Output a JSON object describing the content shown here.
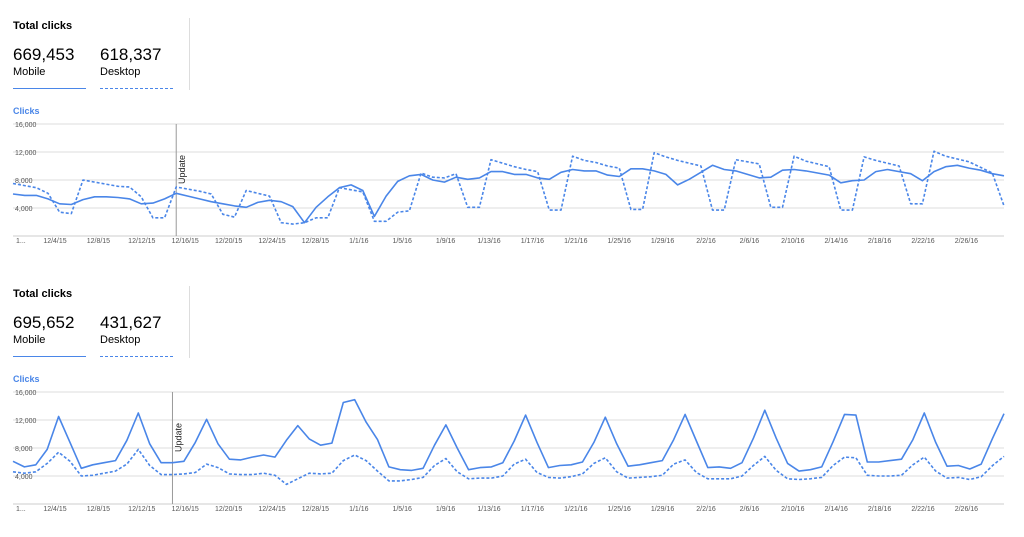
{
  "panels": [
    {
      "title": "Total clicks",
      "mobile_value": "669,453",
      "mobile_label": "Mobile",
      "desktop_value": "618,337",
      "desktop_label": "Desktop",
      "clicks_label": "Clicks",
      "update_label": "Update"
    },
    {
      "title": "Total clicks",
      "mobile_value": "695,652",
      "mobile_label": "Mobile",
      "desktop_value": "431,627",
      "desktop_label": "Desktop",
      "clicks_label": "Clicks",
      "update_label": "Update"
    }
  ],
  "colors": {
    "series": "#4a86e8",
    "grid": "#dddddd",
    "text": "#555555",
    "update_line": "#999999"
  },
  "chart_data": [
    {
      "type": "line",
      "title": "",
      "ylabel": "Clicks",
      "ylim": [
        0,
        16000
      ],
      "yticks": [
        "4,000",
        "8,000",
        "12,000",
        "16,000"
      ],
      "xticks": [
        "1...",
        "12/4/15",
        "12/8/15",
        "12/12/15",
        "12/16/15",
        "12/20/15",
        "12/24/15",
        "12/28/15",
        "1/1/16",
        "1/5/16",
        "1/9/16",
        "1/13/16",
        "1/17/16",
        "1/21/16",
        "1/25/16",
        "1/29/16",
        "2/2/16",
        "2/6/16",
        "2/10/16",
        "2/14/16",
        "2/18/16",
        "2/22/16",
        "2/26/16"
      ],
      "annotation": {
        "label": "Update",
        "x_index": 14
      },
      "series": [
        {
          "name": "Mobile",
          "style": "solid",
          "values": [
            6000,
            5800,
            5800,
            5300,
            4600,
            4500,
            5200,
            5600,
            5600,
            5500,
            5300,
            4600,
            4700,
            5300,
            6100,
            5700,
            5300,
            4900,
            4600,
            4300,
            4100,
            4800,
            5100,
            4900,
            4200,
            1900,
            4100,
            5600,
            6900,
            7300,
            6500,
            2800,
            5700,
            7800,
            8600,
            8800,
            8000,
            7700,
            8400,
            8100,
            8300,
            9200,
            9200,
            8800,
            8800,
            8300,
            8100,
            9100,
            9500,
            9300,
            9300,
            8700,
            8500,
            9600,
            9600,
            9300,
            8800,
            7300,
            8100,
            9100,
            10100,
            9500,
            9300,
            8800,
            8300,
            8400,
            9400,
            9500,
            9300,
            9000,
            8700,
            7600,
            7900,
            8000,
            9200,
            9500,
            9200,
            8900,
            7900,
            9200,
            9900,
            10100,
            9700,
            9400,
            8900,
            8600
          ]
        },
        {
          "name": "Desktop",
          "style": "dashed",
          "values": [
            7500,
            7200,
            6900,
            6100,
            3400,
            3200,
            8000,
            7700,
            7400,
            7100,
            7000,
            5600,
            2600,
            2600,
            7000,
            6700,
            6400,
            6000,
            3100,
            2700,
            6500,
            6100,
            5700,
            1900,
            1700,
            1900,
            2600,
            2600,
            6900,
            6600,
            6300,
            2100,
            2100,
            3400,
            3600,
            9000,
            8400,
            8300,
            8900,
            4100,
            4100,
            10900,
            10400,
            9900,
            9500,
            9200,
            3700,
            3700,
            11400,
            10800,
            10500,
            10000,
            9700,
            3800,
            3800,
            11900,
            11300,
            10800,
            10400,
            10000,
            3700,
            3700,
            10900,
            10600,
            10300,
            4100,
            4100,
            11400,
            10700,
            10300,
            9900,
            3700,
            3700,
            11300,
            10800,
            10400,
            10000,
            4600,
            4600,
            12100,
            11400,
            11000,
            10600,
            9800,
            9000,
            4300
          ]
        }
      ]
    },
    {
      "type": "line",
      "title": "",
      "ylabel": "Clicks",
      "ylim": [
        0,
        16000
      ],
      "yticks": [
        "4,000",
        "8,000",
        "12,000",
        "16,000"
      ],
      "xticks": [
        "1...",
        "12/4/15",
        "12/8/15",
        "12/12/15",
        "12/16/15",
        "12/20/15",
        "12/24/15",
        "12/28/15",
        "1/1/16",
        "1/5/16",
        "1/9/16",
        "1/13/16",
        "1/17/16",
        "1/21/16",
        "1/25/16",
        "1/29/16",
        "2/2/16",
        "2/6/16",
        "2/10/16",
        "2/14/16",
        "2/18/16",
        "2/22/16",
        "2/26/16"
      ],
      "annotation": {
        "label": "Update",
        "x_index": 14
      },
      "series": [
        {
          "name": "Mobile",
          "style": "solid",
          "values": [
            6100,
            5300,
            5600,
            7800,
            12500,
            8800,
            5100,
            5600,
            5900,
            6200,
            9100,
            13000,
            8600,
            5900,
            5900,
            6100,
            8800,
            12100,
            8600,
            6400,
            6300,
            6700,
            7000,
            6700,
            9100,
            11200,
            9300,
            8400,
            8700,
            14500,
            14900,
            11700,
            9200,
            5300,
            4900,
            4800,
            5100,
            8400,
            11300,
            8000,
            4900,
            5200,
            5300,
            5900,
            9000,
            12700,
            8800,
            5200,
            5500,
            5600,
            6000,
            8800,
            12400,
            8600,
            5400,
            5600,
            5900,
            6200,
            9200,
            12800,
            9000,
            5200,
            5300,
            5100,
            5900,
            9400,
            13400,
            9400,
            5800,
            4700,
            4900,
            5300,
            8900,
            12800,
            12700,
            6000,
            6000,
            6200,
            6400,
            9200,
            13000,
            8800,
            5400,
            5500,
            5000,
            5700,
            9400,
            12900
          ]
        },
        {
          "name": "Desktop",
          "style": "dashed",
          "values": [
            4600,
            4400,
            4600,
            5800,
            7400,
            6100,
            4000,
            4100,
            4400,
            4700,
            5700,
            7800,
            5500,
            4200,
            4200,
            4300,
            4500,
            5700,
            5200,
            4300,
            4200,
            4200,
            4400,
            4100,
            2800,
            3600,
            4400,
            4300,
            4400,
            6200,
            7000,
            6200,
            4700,
            3300,
            3300,
            3500,
            3800,
            5500,
            6500,
            4600,
            3600,
            3700,
            3700,
            4000,
            5700,
            6400,
            4500,
            3800,
            3700,
            3900,
            4300,
            5800,
            6600,
            4600,
            3700,
            3800,
            3900,
            4100,
            5700,
            6300,
            4500,
            3600,
            3600,
            3600,
            4000,
            5500,
            6800,
            4800,
            3600,
            3500,
            3600,
            3800,
            5500,
            6700,
            6600,
            4100,
            4000,
            4000,
            4100,
            5600,
            6700,
            4700,
            3700,
            3800,
            3500,
            3900,
            5500,
            6800
          ]
        }
      ]
    }
  ]
}
